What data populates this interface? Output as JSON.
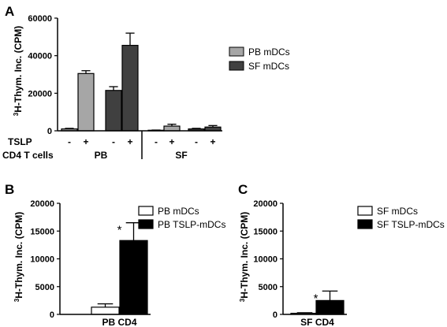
{
  "chart_data": [
    {
      "panel": "A",
      "type": "bar",
      "ylabel_sup": "3",
      "ylabel": "H-Thym. Inc. (CPM)",
      "ylim": [
        0,
        60000
      ],
      "yticks": [
        "0",
        "20000",
        "40000",
        "60000"
      ],
      "row_labels": [
        "TSLP",
        "CD4 T cells"
      ],
      "tslp_signs": [
        "-",
        "+",
        "-",
        "+",
        "-",
        "+",
        "-",
        "+"
      ],
      "groups": [
        "PB",
        "SF"
      ],
      "series": [
        {
          "name": "PB mDCs",
          "color": "#a6a6a6"
        },
        {
          "name": "SF mDCs",
          "color": "#404040"
        }
      ],
      "bars": [
        {
          "group": "PB",
          "series": 0,
          "tslp": "-",
          "value": 1000,
          "err": 300
        },
        {
          "group": "PB",
          "series": 0,
          "tslp": "+",
          "value": 30500,
          "err": 1500
        },
        {
          "group": "PB",
          "series": 1,
          "tslp": "-",
          "value": 21500,
          "err": 2000
        },
        {
          "group": "PB",
          "series": 1,
          "tslp": "+",
          "value": 45500,
          "err": 6500
        },
        {
          "group": "SF",
          "series": 0,
          "tslp": "-",
          "value": 300,
          "err": 100
        },
        {
          "group": "SF",
          "series": 0,
          "tslp": "+",
          "value": 2500,
          "err": 1000
        },
        {
          "group": "SF",
          "series": 1,
          "tslp": "-",
          "value": 1000,
          "err": 300
        },
        {
          "group": "SF",
          "series": 1,
          "tslp": "+",
          "value": 2000,
          "err": 800
        }
      ]
    },
    {
      "panel": "B",
      "type": "bar",
      "ylabel_sup": "3",
      "ylabel": "H-Thym. Inc. (CPM)",
      "ylim": [
        0,
        20000
      ],
      "yticks": [
        "0",
        "5000",
        "10000",
        "15000",
        "20000"
      ],
      "xlabel": "PB CD4",
      "series": [
        {
          "name": "PB mDCs",
          "color": "#ffffff",
          "value": 1300,
          "err": 600
        },
        {
          "name": "PB TSLP-mDCs",
          "color": "#000000",
          "value": 13300,
          "err": 3200
        }
      ],
      "annotation": "*"
    },
    {
      "panel": "C",
      "type": "bar",
      "ylabel_sup": "3",
      "ylabel": "H-Thym. Inc. (CPM)",
      "ylim": [
        0,
        20000
      ],
      "yticks": [
        "0",
        "5000",
        "10000",
        "15000",
        "20000"
      ],
      "xlabel": "SF CD4",
      "series": [
        {
          "name": "SF mDCs",
          "color": "#ffffff",
          "value": 200,
          "err": 100
        },
        {
          "name": "SF TSLP-mDCs",
          "color": "#000000",
          "value": 2500,
          "err": 1700
        }
      ],
      "annotation": "*"
    }
  ]
}
